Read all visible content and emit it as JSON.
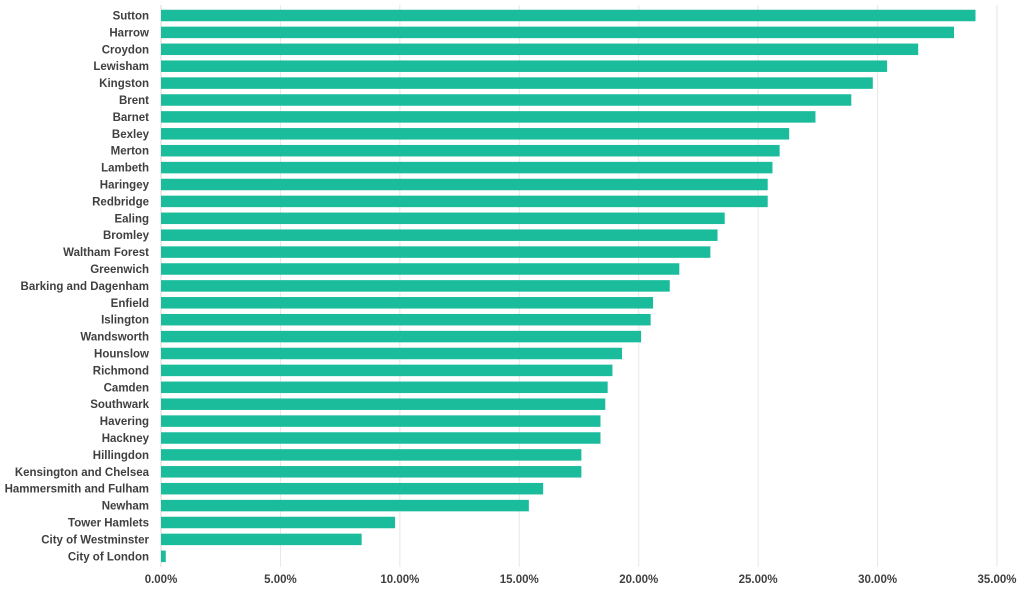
{
  "chart_data": {
    "type": "bar",
    "orientation": "horizontal",
    "title": "",
    "xlabel": "",
    "ylabel": "",
    "bar_color": "#1ABC9C",
    "grid": true,
    "legend": "none",
    "xlim": [
      0,
      35
    ],
    "x_ticks": [
      0,
      5,
      10,
      15,
      20,
      25,
      30,
      35
    ],
    "x_tick_labels": [
      "0.00%",
      "5.00%",
      "10.00%",
      "15.00%",
      "20.00%",
      "25.00%",
      "30.00%",
      "35.00%"
    ],
    "categories": [
      "Sutton",
      "Harrow",
      "Croydon",
      "Lewisham",
      "Kingston",
      "Brent",
      "Barnet",
      "Bexley",
      "Merton",
      "Lambeth",
      "Haringey",
      "Redbridge",
      "Ealing",
      "Bromley",
      "Waltham Forest",
      "Greenwich",
      "Barking and Dagenham",
      "Enfield",
      "Islington",
      "Wandsworth",
      "Hounslow",
      "Richmond",
      "Camden",
      "Southwark",
      "Havering",
      "Hackney",
      "Hillingdon",
      "Kensington and Chelsea",
      "Hammersmith and Fulham",
      "Newham",
      "Tower Hamlets",
      "City of Westminster",
      "City of London"
    ],
    "values": [
      34.1,
      33.2,
      31.7,
      30.4,
      29.8,
      28.9,
      27.4,
      26.3,
      25.9,
      25.6,
      25.4,
      25.4,
      23.6,
      23.3,
      23.0,
      21.7,
      21.3,
      20.6,
      20.5,
      20.1,
      19.3,
      18.9,
      18.7,
      18.6,
      18.4,
      18.4,
      17.6,
      17.6,
      16.0,
      15.4,
      9.8,
      8.4,
      0.2
    ]
  }
}
